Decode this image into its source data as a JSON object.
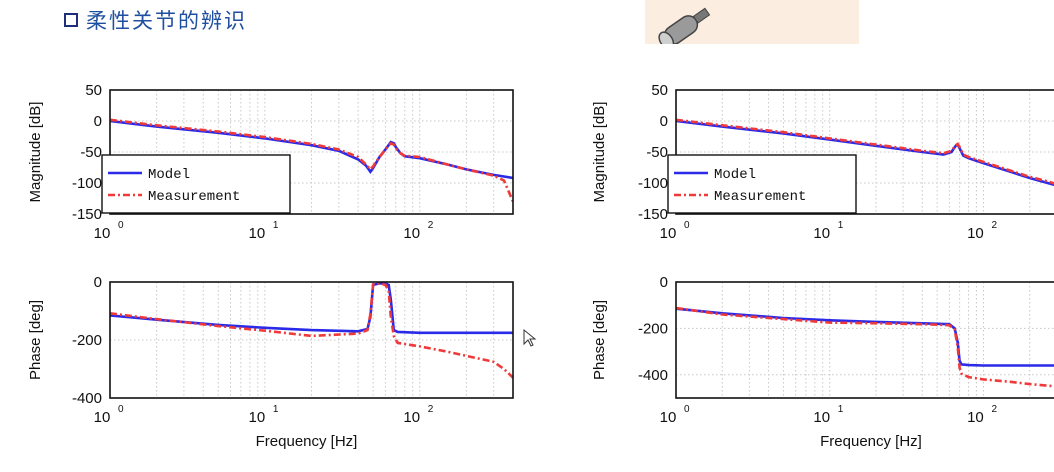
{
  "heading": {
    "text": "柔性关节的辨识",
    "box_icon": "square-outline-icon"
  },
  "image_thumbnail": {
    "icon": "cylinder-probe-icon"
  },
  "colors": {
    "model": "#2a2ae8",
    "measurement": "#f03a3a",
    "heading": "#1f4fa0",
    "grid": "#c8c8c8"
  },
  "chart_data": [
    {
      "panel": "left-magnitude",
      "type": "line",
      "ylabel": "Magnitude [dB]",
      "xlabel": "",
      "xscale": "log",
      "xlim": [
        1,
        400
      ],
      "ylim": [
        -150,
        50
      ],
      "yticks": [
        "50",
        "0",
        "-50",
        "-100",
        "-150"
      ],
      "xticks": [
        {
          "base": "10",
          "exp": "0"
        },
        {
          "base": "10",
          "exp": "1"
        },
        {
          "base": "10",
          "exp": "2"
        }
      ],
      "legend": {
        "placement": "lower-left",
        "entries": [
          "Model",
          "Measurement"
        ]
      },
      "series": [
        {
          "name": "Model",
          "x": [
            1,
            2,
            5,
            10,
            20,
            30,
            40,
            45,
            48,
            50,
            55,
            60,
            65,
            68,
            70,
            75,
            80,
            100,
            150,
            200,
            300,
            400
          ],
          "y": [
            0,
            -9,
            -19,
            -28,
            -39,
            -48,
            -62,
            -72,
            -82,
            -76,
            -58,
            -46,
            -34,
            -36,
            -42,
            -52,
            -57,
            -60,
            -70,
            -78,
            -87,
            -92
          ]
        },
        {
          "name": "Measurement",
          "x": [
            1,
            2,
            5,
            10,
            20,
            30,
            40,
            45,
            48,
            50,
            55,
            60,
            65,
            68,
            70,
            75,
            80,
            100,
            150,
            200,
            300,
            350,
            400
          ],
          "y": [
            2,
            -7,
            -17,
            -26,
            -37,
            -46,
            -58,
            -70,
            -78,
            -73,
            -58,
            -46,
            -36,
            -38,
            -44,
            -52,
            -56,
            -58,
            -70,
            -78,
            -88,
            -96,
            -130
          ]
        }
      ]
    },
    {
      "panel": "left-phase",
      "type": "line",
      "ylabel": "Phase [deg]",
      "xlabel": "Frequency [Hz]",
      "xscale": "log",
      "xlim": [
        1,
        400
      ],
      "ylim": [
        -400,
        0
      ],
      "yticks": [
        "0",
        "-200",
        "-400"
      ],
      "xticks": [
        {
          "base": "10",
          "exp": "0"
        },
        {
          "base": "10",
          "exp": "1"
        },
        {
          "base": "10",
          "exp": "2"
        }
      ],
      "series": [
        {
          "name": "Model",
          "x": [
            1,
            2,
            5,
            10,
            20,
            40,
            46,
            48,
            50,
            55,
            60,
            63,
            65,
            68,
            72,
            100,
            200,
            400
          ],
          "y": [
            -115,
            -130,
            -148,
            -158,
            -166,
            -170,
            -162,
            -120,
            -10,
            -5,
            -5,
            -10,
            -60,
            -166,
            -172,
            -175,
            -175,
            -175
          ]
        },
        {
          "name": "Measurement",
          "x": [
            1,
            2,
            5,
            10,
            20,
            40,
            46,
            48,
            50,
            55,
            60,
            63,
            65,
            68,
            72,
            100,
            150,
            200,
            300,
            350,
            400
          ],
          "y": [
            -108,
            -128,
            -152,
            -168,
            -186,
            -178,
            -166,
            -110,
            -8,
            -4,
            -10,
            -30,
            -120,
            -186,
            -210,
            -222,
            -240,
            -255,
            -275,
            -300,
            -330
          ]
        }
      ]
    },
    {
      "panel": "right-magnitude",
      "type": "line",
      "ylabel": "Magnitude [dB]",
      "xlabel": "",
      "xscale": "log",
      "xlim": [
        1,
        400
      ],
      "ylim": [
        -150,
        50
      ],
      "yticks": [
        "50",
        "0",
        "-50",
        "-100",
        "-150"
      ],
      "xticks": [
        {
          "base": "10",
          "exp": "0"
        },
        {
          "base": "10",
          "exp": "1"
        },
        {
          "base": "10",
          "exp": "2"
        }
      ],
      "legend": {
        "placement": "lower-left",
        "entries": [
          "Model",
          "Measurement"
        ]
      },
      "series": [
        {
          "name": "Model",
          "x": [
            1,
            2,
            5,
            10,
            20,
            40,
            55,
            62,
            66,
            68,
            70,
            74,
            80,
            100,
            150,
            200,
            300,
            400
          ],
          "y": [
            0,
            -9,
            -20,
            -30,
            -40,
            -50,
            -54,
            -50,
            -40,
            -38,
            -44,
            -56,
            -60,
            -68,
            -82,
            -92,
            -104,
            -112
          ]
        },
        {
          "name": "Measurement",
          "x": [
            1,
            2,
            5,
            10,
            20,
            40,
            55,
            62,
            66,
            68,
            70,
            74,
            80,
            100,
            150,
            200,
            250,
            300,
            400
          ],
          "y": [
            2,
            -7,
            -18,
            -28,
            -38,
            -48,
            -52,
            -48,
            -39,
            -37,
            -42,
            -54,
            -58,
            -66,
            -80,
            -90,
            -96,
            -102,
            -110
          ]
        }
      ]
    },
    {
      "panel": "right-phase",
      "type": "line",
      "ylabel": "Phase [deg]",
      "xlabel": "Frequency [Hz]",
      "xscale": "log",
      "xlim": [
        1,
        400
      ],
      "ylim": [
        -500,
        0
      ],
      "yticks": [
        "0",
        "-200",
        "-400"
      ],
      "xticks": [
        {
          "base": "10",
          "exp": "0"
        },
        {
          "base": "10",
          "exp": "1"
        },
        {
          "base": "10",
          "exp": "2"
        }
      ],
      "series": [
        {
          "name": "Model",
          "x": [
            1,
            2,
            5,
            10,
            20,
            40,
            60,
            65,
            68,
            70,
            72,
            80,
            100,
            200,
            400
          ],
          "y": [
            -115,
            -135,
            -155,
            -165,
            -172,
            -178,
            -182,
            -200,
            -260,
            -340,
            -355,
            -358,
            -360,
            -360,
            -360
          ]
        },
        {
          "name": "Measurement",
          "x": [
            1,
            2,
            5,
            10,
            20,
            40,
            60,
            65,
            68,
            70,
            72,
            80,
            100,
            150,
            200,
            300,
            400
          ],
          "y": [
            -112,
            -140,
            -160,
            -175,
            -178,
            -182,
            -186,
            -205,
            -280,
            -370,
            -395,
            -410,
            -420,
            -430,
            -440,
            -450,
            -455
          ]
        }
      ]
    }
  ]
}
